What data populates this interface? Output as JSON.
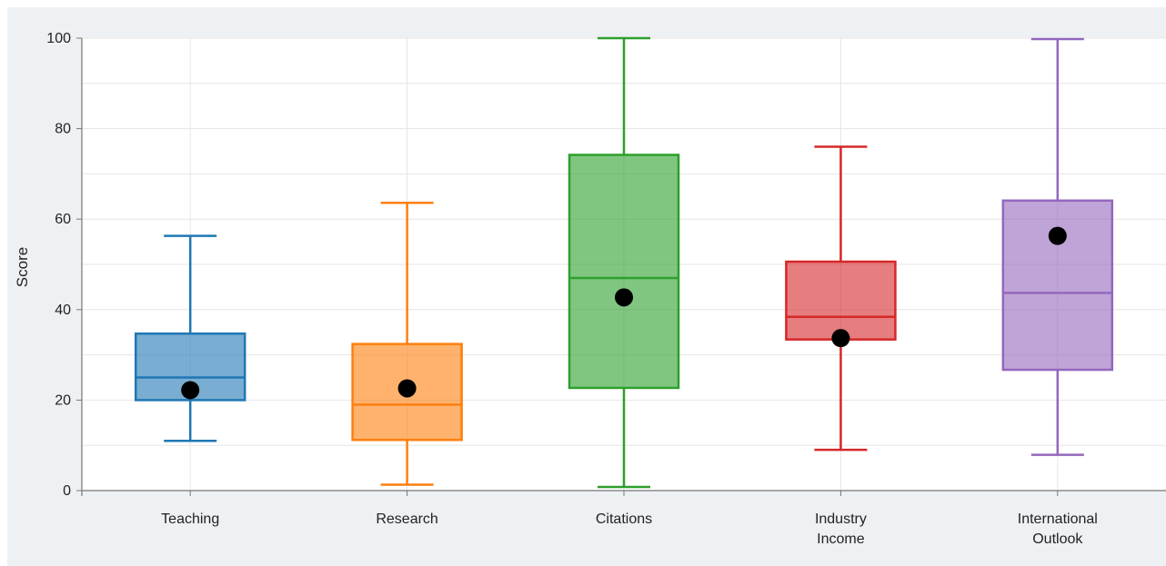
{
  "chart_data": {
    "type": "box",
    "title": "",
    "xlabel": "",
    "ylabel": "Score",
    "ylim": [
      0,
      100
    ],
    "yticks": [
      0,
      20,
      40,
      60,
      80,
      100
    ],
    "grid": true,
    "legend": "none",
    "categories": [
      [
        "Teaching"
      ],
      [
        "Research"
      ],
      [
        "Citations"
      ],
      [
        "Industry",
        "Income"
      ],
      [
        "International",
        "Outlook"
      ]
    ],
    "series": [
      {
        "category": "Teaching",
        "color": "#1f77b4",
        "min": 11,
        "q1": 20,
        "median": 25,
        "q3": 34.7,
        "max": 56.3,
        "mean": 22.2
      },
      {
        "category": "Research",
        "color": "#ff7f0e",
        "min": 1.3,
        "q1": 11.2,
        "median": 19,
        "q3": 32.4,
        "max": 63.6,
        "mean": 22.6
      },
      {
        "category": "Citations",
        "color": "#2ca02c",
        "min": 0.8,
        "q1": 22.7,
        "median": 47,
        "q3": 74.2,
        "max": 100,
        "mean": 42.7
      },
      {
        "category": "Industry Income",
        "color": "#d62728",
        "min": 9,
        "q1": 33.4,
        "median": 38.4,
        "q3": 50.6,
        "max": 76,
        "mean": 33.7
      },
      {
        "category": "International Outlook",
        "color": "#9467bd",
        "min": 7.9,
        "q1": 26.7,
        "median": 43.7,
        "q3": 64.1,
        "max": 99.8,
        "mean": 56.3
      }
    ]
  }
}
